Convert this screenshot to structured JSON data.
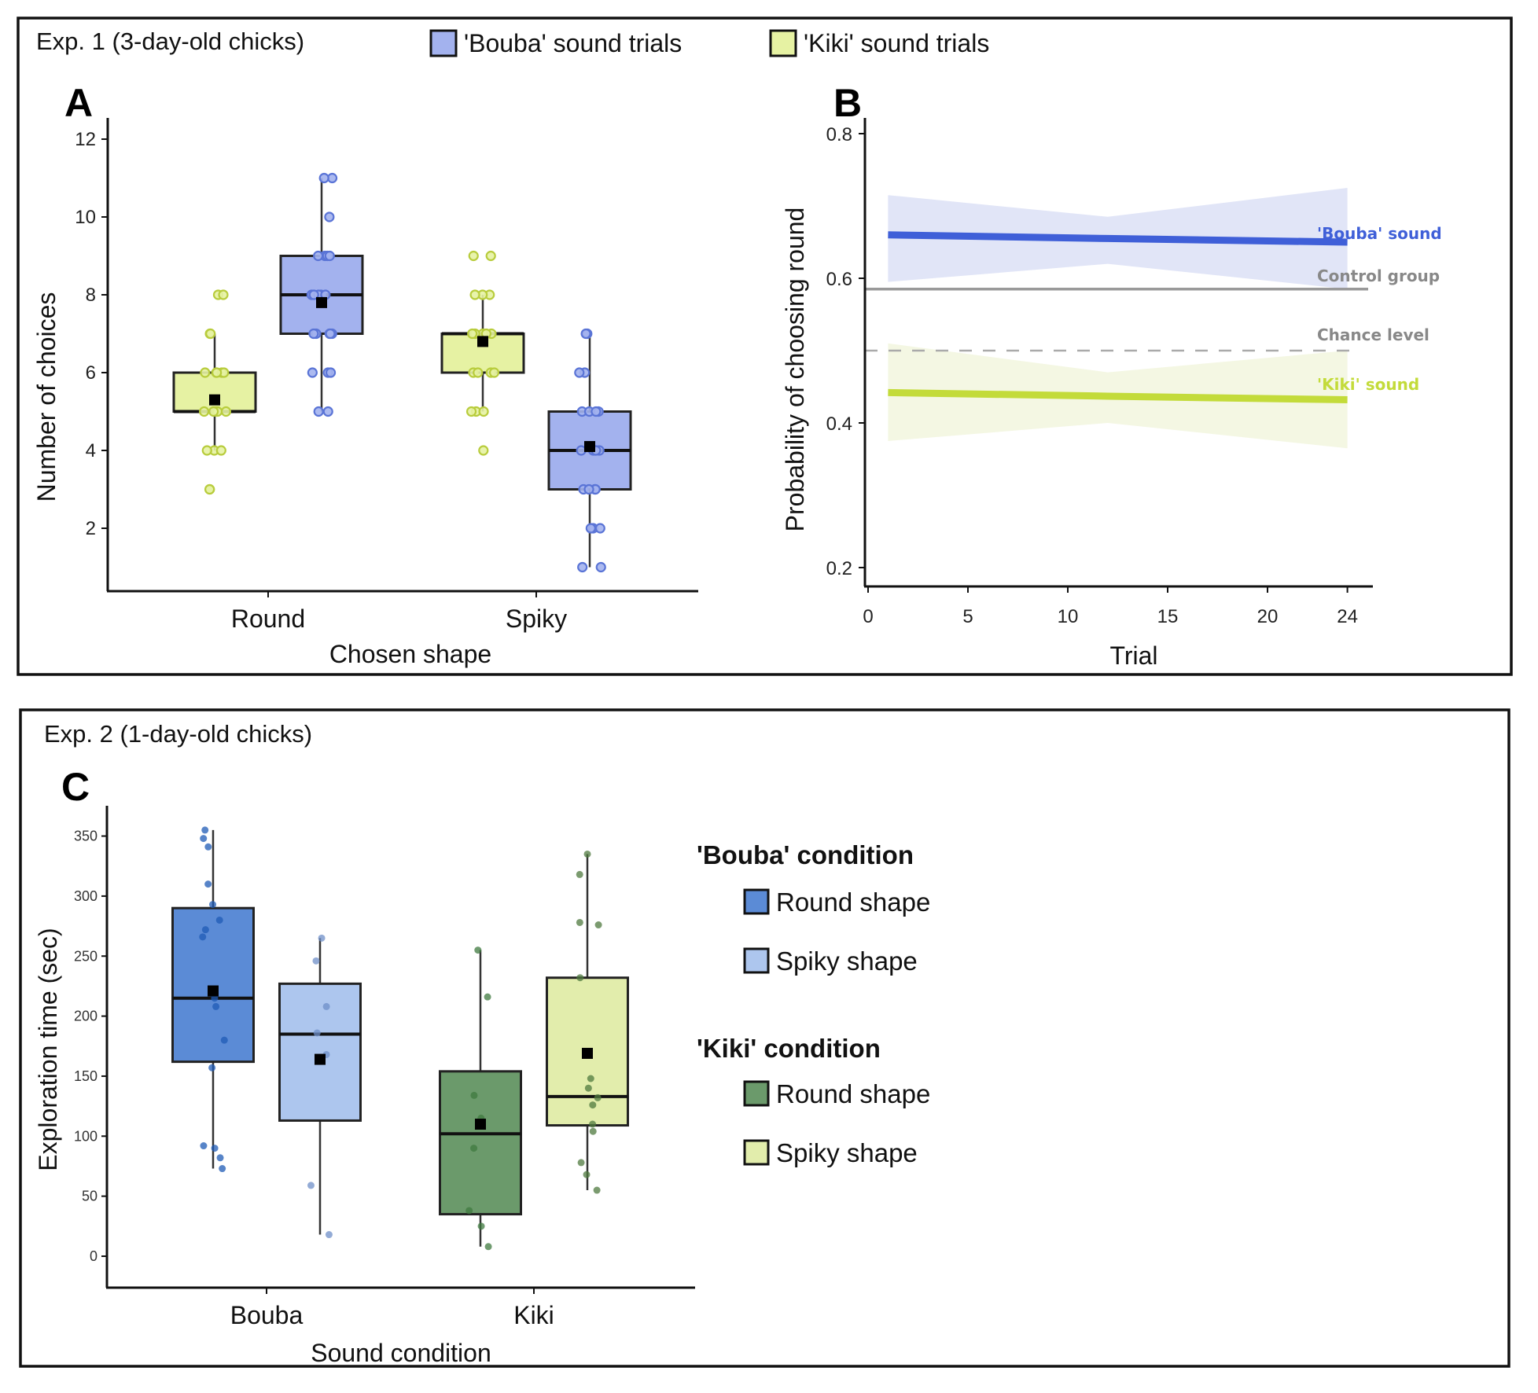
{
  "figure": {
    "exp1_title": "Exp. 1 (3-day-old chicks)",
    "exp2_title": "Exp. 2 (1-day-old chicks)",
    "legend_top": [
      {
        "label": "'Bouba' sound trials",
        "color": "#a3b2ee"
      },
      {
        "label": "'Kiki' sound trials",
        "color": "#e6f2a3"
      }
    ],
    "panel_labels": {
      "a": "A",
      "b": "B",
      "c": "C"
    }
  },
  "chart_data": [
    {
      "id": "A",
      "type": "box",
      "title": "",
      "xlabel": "Chosen shape",
      "ylabel": "Number of choices",
      "categories": [
        "Round",
        "Spiky"
      ],
      "yticks": [
        2,
        4,
        6,
        8,
        10,
        12
      ],
      "ylim": [
        0.5,
        12.5
      ],
      "series": [
        {
          "name": "'Kiki' sound trials",
          "color": "#e6f2a3",
          "point_color": "#b8cc3c",
          "boxes": [
            {
              "category": "Round",
              "q1": 5,
              "median": 5,
              "q3": 6,
              "whisker_low": 4,
              "whisker_high": 7,
              "mean": 5.3,
              "points": [
                3,
                3,
                4,
                4,
                4,
                5,
                5,
                5,
                5,
                5,
                6,
                6,
                6,
                6,
                6,
                7,
                7,
                8,
                8
              ]
            },
            {
              "category": "Spiky",
              "q1": 6,
              "median": 7,
              "q3": 7,
              "whisker_low": 5,
              "whisker_high": 8,
              "mean": 6.8,
              "points": [
                4,
                5,
                5,
                5,
                6,
                6,
                6,
                6,
                7,
                7,
                7,
                7,
                7,
                8,
                8,
                8,
                9,
                9
              ]
            }
          ]
        },
        {
          "name": "'Bouba' sound trials",
          "color": "#a3b2ee",
          "point_color": "#5a74d6",
          "boxes": [
            {
              "category": "Round",
              "q1": 7,
              "median": 8,
              "q3": 9,
              "whisker_low": 5,
              "whisker_high": 11,
              "mean": 7.8,
              "points": [
                5,
                5,
                6,
                6,
                6,
                7,
                7,
                7,
                7,
                7,
                8,
                8,
                8,
                8,
                8,
                9,
                9,
                9,
                9,
                10,
                11,
                11
              ]
            },
            {
              "category": "Spiky",
              "q1": 3,
              "median": 4,
              "q3": 5,
              "whisker_low": 1,
              "whisker_high": 7,
              "mean": 4.1,
              "points": [
                1,
                1,
                2,
                2,
                2,
                3,
                3,
                3,
                3,
                3,
                4,
                4,
                4,
                4,
                4,
                5,
                5,
                5,
                5,
                6,
                6,
                7,
                7
              ]
            }
          ]
        }
      ]
    },
    {
      "id": "B",
      "type": "line",
      "xlabel": "Trial",
      "ylabel": "Probability of choosing round",
      "xticks": [
        0,
        5,
        10,
        15,
        20,
        24
      ],
      "yticks": [
        0.2,
        0.4,
        0.6,
        0.8
      ],
      "xlim": [
        0,
        25.5
      ],
      "ylim": [
        0.16,
        0.82
      ],
      "series": [
        {
          "name": "'Bouba' sound",
          "color": "#3f5fd8",
          "band_color": "#dfe4f7",
          "x": [
            1,
            12,
            24
          ],
          "y": [
            0.66,
            0.655,
            0.65
          ],
          "ci_low": [
            0.595,
            0.62,
            0.585
          ],
          "ci_high": [
            0.715,
            0.685,
            0.725
          ]
        },
        {
          "name": "'Kiki' sound",
          "color": "#c3db3a",
          "band_color": "#f3f7e2",
          "x": [
            1,
            12,
            24
          ],
          "y": [
            0.442,
            0.437,
            0.432
          ],
          "ci_low": [
            0.375,
            0.4,
            0.365
          ],
          "ci_high": [
            0.51,
            0.47,
            0.5
          ]
        }
      ],
      "reference_lines": [
        {
          "name": "Control group",
          "y": 0.585,
          "style": "solid",
          "color": "#999999"
        },
        {
          "name": "Chance level",
          "y": 0.5,
          "style": "dashed",
          "color": "#aaaaaa"
        }
      ]
    },
    {
      "id": "C",
      "type": "box",
      "xlabel": "Sound condition",
      "ylabel": "Exploration time (sec)",
      "categories": [
        "Bouba",
        "Kiki"
      ],
      "yticks": [
        0,
        50,
        100,
        150,
        200,
        250,
        300,
        350
      ],
      "ylim": [
        -18,
        378
      ],
      "legend": [
        {
          "heading": "'Bouba' condition",
          "items": [
            {
              "label": "Round shape",
              "color": "#5b8bd6"
            },
            {
              "label": "Spiky shape",
              "color": "#adc6ee"
            }
          ]
        },
        {
          "heading": "'Kiki' condition",
          "items": [
            {
              "label": "Round shape",
              "color": "#6b9a6b"
            },
            {
              "label": "Spiky shape",
              "color": "#e2edac"
            }
          ]
        }
      ],
      "boxes": [
        {
          "category": "Bouba",
          "shape": "Round shape",
          "color": "#5b8bd6",
          "point_color": "#1f5bb5",
          "q1": 162,
          "median": 215,
          "q3": 290,
          "whisker_low": 73,
          "whisker_high": 355,
          "mean": 221,
          "points": [
            355,
            348,
            341,
            310,
            293,
            280,
            272,
            266,
            215,
            208,
            180,
            157,
            92,
            90,
            82,
            73
          ]
        },
        {
          "category": "Bouba",
          "shape": "Spiky shape",
          "color": "#adc6ee",
          "point_color": "#6f8fc8",
          "q1": 113,
          "median": 185,
          "q3": 227,
          "whisker_low": 18,
          "whisker_high": 265,
          "mean": 164,
          "points": [
            265,
            246,
            208,
            186,
            168,
            59,
            18
          ]
        },
        {
          "category": "Kiki",
          "shape": "Round shape",
          "color": "#6b9a6b",
          "point_color": "#3f7a3f",
          "q1": 35,
          "median": 102,
          "q3": 154,
          "whisker_low": 8,
          "whisker_high": 255,
          "mean": 110,
          "points": [
            255,
            216,
            134,
            115,
            90,
            38,
            25,
            8
          ]
        },
        {
          "category": "Kiki",
          "shape": "Spiky shape",
          "color": "#e2edac",
          "point_color": "#4f7a3f",
          "q1": 109,
          "median": 133,
          "q3": 232,
          "whisker_low": 55,
          "whisker_high": 335,
          "mean": 169,
          "points": [
            335,
            318,
            278,
            276,
            232,
            148,
            140,
            132,
            126,
            110,
            104,
            78,
            68,
            55
          ]
        }
      ]
    }
  ]
}
